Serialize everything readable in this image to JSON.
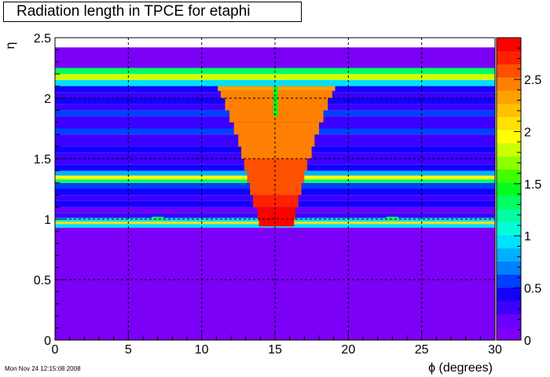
{
  "chart_data": {
    "type": "heatmap",
    "title": "Radiation length in TPCE for etaphi",
    "xlabel": "ϕ (degrees)",
    "ylabel": "η",
    "xlim": [
      0,
      30
    ],
    "ylim": [
      0,
      2.5
    ],
    "x_ticks": [
      "0",
      "5",
      "10",
      "15",
      "20",
      "25",
      "30"
    ],
    "y_ticks": [
      "0",
      "0.5",
      "1",
      "1.5",
      "2",
      "2.5"
    ],
    "z_range": [
      0,
      2.9
    ],
    "z_ticks": [
      "0",
      "0.5",
      "1",
      "1.5",
      "2",
      "2.5"
    ],
    "grid": true,
    "palette": [
      "#7b00f5",
      "#6a00ff",
      "#3b00ff",
      "#1400ff",
      "#0040ff",
      "#0080ff",
      "#00b0ff",
      "#00e0ff",
      "#00ffd8",
      "#00ffa0",
      "#00ff60",
      "#00ff20",
      "#40ff00",
      "#90ff00",
      "#ccff00",
      "#ffff00",
      "#ffe000",
      "#ffc000",
      "#ffa000",
      "#ff8000",
      "#ff5000",
      "#ff2000",
      "#ff0000"
    ],
    "eta_bands": [
      {
        "eta": [
          0.0,
          0.93
        ],
        "value": 0.08
      },
      {
        "eta": [
          0.93,
          0.96
        ],
        "value": 1.0
      },
      {
        "eta": [
          0.96,
          0.98
        ],
        "value": 2.1
      },
      {
        "eta": [
          0.98,
          1.01
        ],
        "value": 0.9
      },
      {
        "eta": [
          1.01,
          1.05
        ],
        "value": 0.35
      },
      {
        "eta": [
          1.05,
          1.1
        ],
        "value": 0.25
      },
      {
        "eta": [
          1.1,
          1.15
        ],
        "value": 0.4
      },
      {
        "eta": [
          1.15,
          1.2
        ],
        "value": 0.3
      },
      {
        "eta": [
          1.2,
          1.25
        ],
        "value": 0.45
      },
      {
        "eta": [
          1.25,
          1.3
        ],
        "value": 0.6
      },
      {
        "eta": [
          1.3,
          1.33
        ],
        "value": 1.3
      },
      {
        "eta": [
          1.33,
          1.36
        ],
        "value": 1.9
      },
      {
        "eta": [
          1.36,
          1.4
        ],
        "value": 0.8
      },
      {
        "eta": [
          1.4,
          1.45
        ],
        "value": 0.4
      },
      {
        "eta": [
          1.45,
          1.55
        ],
        "value": 0.3
      },
      {
        "eta": [
          1.55,
          1.6
        ],
        "value": 0.5
      },
      {
        "eta": [
          1.6,
          1.7
        ],
        "value": 0.3
      },
      {
        "eta": [
          1.7,
          1.75
        ],
        "value": 0.6
      },
      {
        "eta": [
          1.75,
          1.85
        ],
        "value": 0.3
      },
      {
        "eta": [
          1.85,
          1.9
        ],
        "value": 0.55
      },
      {
        "eta": [
          1.9,
          1.95
        ],
        "value": 0.35
      },
      {
        "eta": [
          1.95,
          2.0
        ],
        "value": 0.5
      },
      {
        "eta": [
          2.0,
          2.05
        ],
        "value": 0.3
      },
      {
        "eta": [
          2.05,
          2.1
        ],
        "value": 0.4
      },
      {
        "eta": [
          2.1,
          2.15
        ],
        "value": 1.0
      },
      {
        "eta": [
          2.15,
          2.2
        ],
        "value": 1.8
      },
      {
        "eta": [
          2.2,
          2.25
        ],
        "value": 1.3
      },
      {
        "eta": [
          2.25,
          2.42
        ],
        "value": 0.1
      }
    ],
    "phi_structure": [
      {
        "eta": [
          0.94,
          1.0
        ],
        "phi": [
          13.9,
          16.3
        ],
        "value": 2.9
      },
      {
        "eta": [
          1.0,
          1.1
        ],
        "phi": [
          13.8,
          16.4
        ],
        "value": 2.8
      },
      {
        "eta": [
          1.1,
          1.2
        ],
        "phi": [
          13.5,
          16.6
        ],
        "value": 2.7
      },
      {
        "eta": [
          1.2,
          1.3
        ],
        "phi": [
          13.3,
          16.8
        ],
        "value": 2.6
      },
      {
        "eta": [
          1.3,
          1.4
        ],
        "phi": [
          13.1,
          17.0
        ],
        "value": 2.55
      },
      {
        "eta": [
          1.4,
          1.5
        ],
        "phi": [
          12.9,
          17.2
        ],
        "value": 2.55
      },
      {
        "eta": [
          1.5,
          1.6
        ],
        "phi": [
          12.7,
          17.5
        ],
        "value": 2.5
      },
      {
        "eta": [
          1.6,
          1.7
        ],
        "phi": [
          12.5,
          17.7
        ],
        "value": 2.5
      },
      {
        "eta": [
          1.7,
          1.8
        ],
        "phi": [
          12.2,
          18.0
        ],
        "value": 2.45
      },
      {
        "eta": [
          1.8,
          1.9
        ],
        "phi": [
          11.9,
          18.3
        ],
        "value": 2.45
      },
      {
        "eta": [
          1.9,
          2.0
        ],
        "phi": [
          11.6,
          18.6
        ],
        "value": 2.4
      },
      {
        "eta": [
          2.0,
          2.06
        ],
        "phi": [
          11.3,
          18.9
        ],
        "value": 2.4
      },
      {
        "eta": [
          2.06,
          2.1
        ],
        "phi": [
          11.1,
          19.1
        ],
        "value": 2.3
      }
    ],
    "phi_gap": {
      "eta": [
        1.85,
        2.1
      ],
      "phi": [
        14.9,
        15.2
      ],
      "value": 1.5
    },
    "small_spots": [
      {
        "eta": [
          0.99,
          1.02
        ],
        "phi": [
          6.6,
          7.4
        ],
        "value": 1.3
      },
      {
        "eta": [
          0.99,
          1.02
        ],
        "phi": [
          22.6,
          23.4
        ],
        "value": 1.3
      }
    ]
  },
  "timestamp": "Mon Nov 24 12:15:08 2008"
}
